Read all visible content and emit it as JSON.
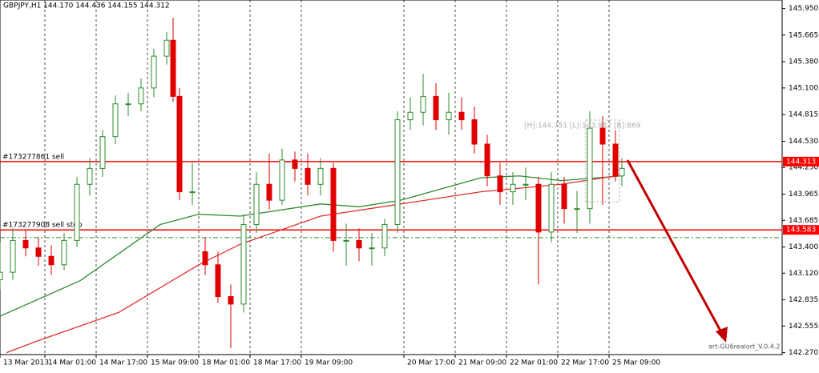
{
  "chart_data": {
    "type": "candlestick",
    "title": "GBPJPY,H1  144.170 144.436 144.155 144.312",
    "x": [
      0,
      4,
      8,
      12,
      16,
      20,
      24,
      28,
      32,
      36,
      40,
      44,
      48,
      52,
      54,
      56,
      60,
      64,
      68,
      72,
      76,
      80,
      84,
      88,
      92,
      96,
      100,
      104,
      108,
      112,
      116,
      120,
      124,
      128,
      132,
      136,
      140,
      144,
      148,
      152,
      156,
      160,
      164,
      168,
      172,
      176,
      180,
      184,
      188,
      192,
      194
    ],
    "open": [
      143.05,
      143.13,
      143.47,
      143.39,
      143.3,
      143.21,
      143.47,
      144.07,
      144.24,
      144.58,
      144.93,
      144.93,
      145.1,
      145.44,
      145.61,
      145.01,
      143.99,
      143.35,
      143.21,
      142.87,
      142.79,
      143.64,
      144.07,
      143.9,
      144.33,
      144.24,
      144.07,
      144.24,
      143.47,
      143.47,
      143.39,
      143.39,
      143.64,
      144.76,
      144.84,
      145.01,
      144.76,
      144.84,
      144.76,
      144.5,
      144.16,
      143.99,
      144.07,
      144.07,
      143.56,
      144.07,
      143.81,
      143.81,
      144.67,
      144.5,
      144.16
    ],
    "high": [
      143.45,
      143.6,
      143.58,
      143.5,
      143.42,
      143.55,
      144.15,
      144.35,
      144.65,
      145.02,
      145.05,
      145.2,
      145.52,
      145.7,
      145.85,
      145.1,
      144.3,
      143.5,
      143.35,
      143.0,
      143.75,
      144.2,
      144.4,
      144.45,
      144.42,
      144.4,
      144.35,
      144.3,
      143.65,
      143.6,
      143.55,
      143.7,
      144.85,
      145.0,
      145.25,
      145.15,
      145.05,
      145.0,
      144.9,
      144.6,
      144.3,
      144.2,
      144.25,
      144.15,
      144.2,
      144.15,
      144.0,
      144.85,
      144.8,
      144.65,
      144.35
    ],
    "low": [
      142.95,
      143.05,
      143.3,
      143.2,
      143.1,
      143.15,
      143.4,
      143.95,
      144.15,
      144.5,
      144.8,
      144.85,
      145.0,
      145.35,
      144.95,
      143.9,
      143.85,
      143.1,
      142.8,
      142.32,
      142.7,
      143.55,
      143.8,
      143.85,
      144.1,
      143.95,
      143.95,
      143.35,
      143.2,
      143.25,
      143.2,
      143.3,
      143.55,
      144.65,
      144.7,
      144.65,
      144.6,
      144.65,
      144.4,
      144.05,
      143.85,
      143.85,
      143.9,
      143.0,
      143.45,
      143.65,
      143.55,
      143.65,
      143.85,
      144.1,
      144.05
    ],
    "close": [
      143.13,
      143.47,
      143.39,
      143.3,
      143.21,
      143.47,
      144.07,
      144.24,
      144.58,
      144.93,
      144.93,
      145.1,
      145.44,
      145.61,
      145.01,
      143.99,
      143.99,
      143.21,
      142.87,
      142.79,
      143.64,
      144.07,
      143.9,
      144.33,
      144.24,
      144.07,
      144.24,
      143.47,
      143.47,
      143.39,
      143.39,
      143.64,
      144.76,
      144.84,
      145.01,
      144.76,
      144.84,
      144.76,
      144.5,
      144.16,
      143.99,
      144.07,
      144.07,
      143.56,
      144.07,
      143.81,
      143.81,
      144.67,
      144.5,
      144.16,
      144.24
    ],
    "up_color": "#2e8b2e",
    "down_color": "#e00000",
    "moving_averages": [
      {
        "color": "#2e8b2e",
        "x": [
          0,
          25,
          50,
          62,
          75,
          100,
          112,
          125,
          150,
          162,
          175,
          194
        ],
        "values": [
          142.66,
          143.04,
          143.64,
          143.75,
          143.73,
          143.86,
          143.83,
          143.9,
          144.14,
          144.16,
          144.11,
          144.16
        ]
      },
      {
        "color": "#e03030",
        "x": [
          2,
          12,
          37,
          62,
          75,
          100,
          125,
          150,
          175,
          194
        ],
        "values": [
          142.27,
          142.4,
          142.7,
          143.21,
          143.43,
          143.73,
          143.86,
          143.99,
          144.07,
          144.17
        ]
      }
    ],
    "levels": [
      {
        "label": "#173277861 sell",
        "value": 144.313,
        "color": "#ff0000"
      },
      {
        "label": "#173277908 sell stop",
        "value": 143.583,
        "color": "#ff0000"
      },
      {
        "value": 143.5,
        "color": "#2e8b2e"
      }
    ],
    "annotation": "[H]:144.751 [L]:143.882 [R]:869",
    "watermark": "art-GU6realort_V.0.4.2",
    "xlim": [
      0,
      244
    ],
    "ylim": [
      142.25,
      146.04
    ],
    "xticks": [
      {
        "value": 0,
        "label": "13 Mar 2013"
      },
      {
        "value": 14,
        "label": "14 Mar 01:00"
      },
      {
        "value": 30,
        "label": "14 Mar 17:00"
      },
      {
        "value": 46,
        "label": "15 Mar 09:00"
      },
      {
        "value": 62,
        "label": "18 Mar 01:00"
      },
      {
        "value": 78,
        "label": "18 Mar 17:00"
      },
      {
        "value": 94,
        "label": "19 Mar 09:00"
      },
      {
        "value": 126,
        "label": "20 Mar 17:00"
      },
      {
        "value": 142,
        "label": "21 Mar 09:00"
      },
      {
        "value": 158,
        "label": "22 Mar 01:00"
      },
      {
        "value": 174,
        "label": "22 Mar 17:00"
      },
      {
        "value": 190,
        "label": "25 Mar 09:00"
      }
    ],
    "yticks": [
      {
        "value": 145.95,
        "label": "145.950"
      },
      145.665,
      {
        "value": 145.38,
        "label": "145.380"
      },
      {
        "value": 145.1,
        "label": "145.100"
      },
      144.815,
      {
        "value": 144.53,
        "label": "144.530"
      },
      {
        "value": 144.25,
        "label": "144.250"
      },
      143.965,
      143.685,
      {
        "value": 143.4,
        "label": "143.400"
      },
      {
        "value": 143.12,
        "label": "143.120"
      },
      142.835,
      142.555,
      {
        "value": 142.27,
        "label": "142.270"
      }
    ]
  }
}
